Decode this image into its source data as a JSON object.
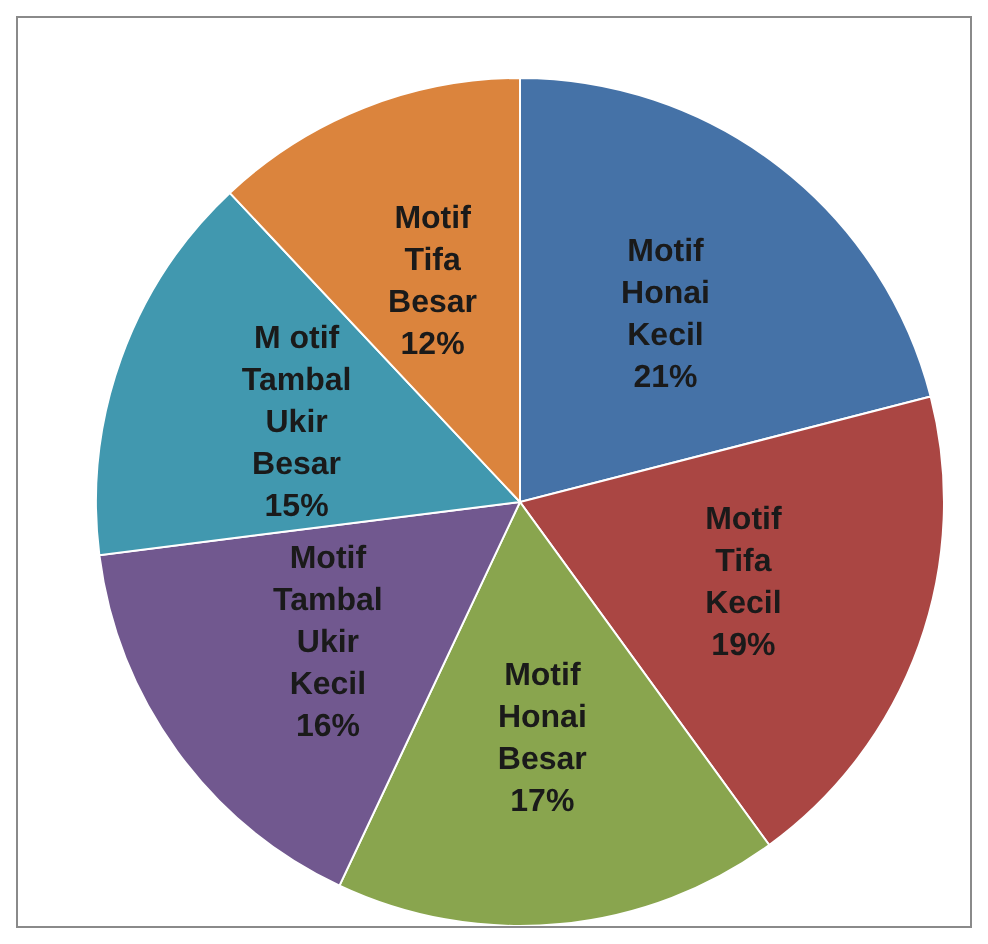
{
  "chart_data": {
    "type": "pie",
    "categories": [
      "Motif Honai Kecil",
      "Motif Tifa Kecil",
      "Motif Honai Besar",
      "Motif Tambal Ukir Kecil",
      "M otif Tambal Ukir Besar",
      "Motif Tifa Besar"
    ],
    "values": [
      21,
      19,
      17,
      16,
      15,
      12
    ],
    "colors": [
      "#4572a7",
      "#aa4643",
      "#89a54e",
      "#71588f",
      "#4198af",
      "#db843d"
    ],
    "value_labels": [
      "21%",
      "19%",
      "17%",
      "16%",
      "15%",
      "12%"
    ],
    "legend": false
  }
}
